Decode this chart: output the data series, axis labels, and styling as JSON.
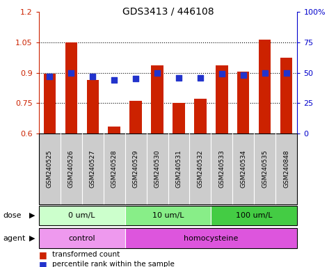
{
  "title": "GDS3413 / 446108",
  "samples": [
    "GSM240525",
    "GSM240526",
    "GSM240527",
    "GSM240528",
    "GSM240529",
    "GSM240530",
    "GSM240531",
    "GSM240532",
    "GSM240533",
    "GSM240534",
    "GSM240535",
    "GSM240848"
  ],
  "bar_values": [
    0.895,
    1.05,
    0.865,
    0.635,
    0.76,
    0.935,
    0.75,
    0.77,
    0.935,
    0.905,
    1.065,
    0.975
  ],
  "blue_values": [
    47,
    50,
    47,
    44,
    45,
    50,
    46,
    46,
    49,
    48,
    50,
    50
  ],
  "bar_color": "#cc2200",
  "blue_color": "#2233cc",
  "ylim_left": [
    0.6,
    1.2
  ],
  "ylim_right": [
    0,
    100
  ],
  "yticks_left": [
    0.6,
    0.75,
    0.9,
    1.05,
    1.2
  ],
  "ytick_labels_left": [
    "0.6",
    "0.75",
    "0.9",
    "1.05",
    "1.2"
  ],
  "yticks_right": [
    0,
    25,
    50,
    75,
    100
  ],
  "ytick_labels_right": [
    "0",
    "25",
    "50",
    "75",
    "100%"
  ],
  "hlines": [
    0.75,
    0.9,
    1.05
  ],
  "dose_groups": [
    {
      "label": "0 um/L",
      "start": 0,
      "end": 4,
      "color": "#ccffcc"
    },
    {
      "label": "10 um/L",
      "start": 4,
      "end": 8,
      "color": "#88ee88"
    },
    {
      "label": "100 um/L",
      "start": 8,
      "end": 12,
      "color": "#44cc44"
    }
  ],
  "agent_groups": [
    {
      "label": "control",
      "start": 0,
      "end": 4,
      "color": "#ee99ee"
    },
    {
      "label": "homocysteine",
      "start": 4,
      "end": 12,
      "color": "#dd55dd"
    }
  ],
  "dose_label": "dose",
  "agent_label": "agent",
  "legend_bar_text": "transformed count",
  "legend_blue_text": "percentile rank within the sample",
  "bg_color": "#ffffff",
  "sample_bg": "#cccccc",
  "label_area_color": "#dddddd"
}
